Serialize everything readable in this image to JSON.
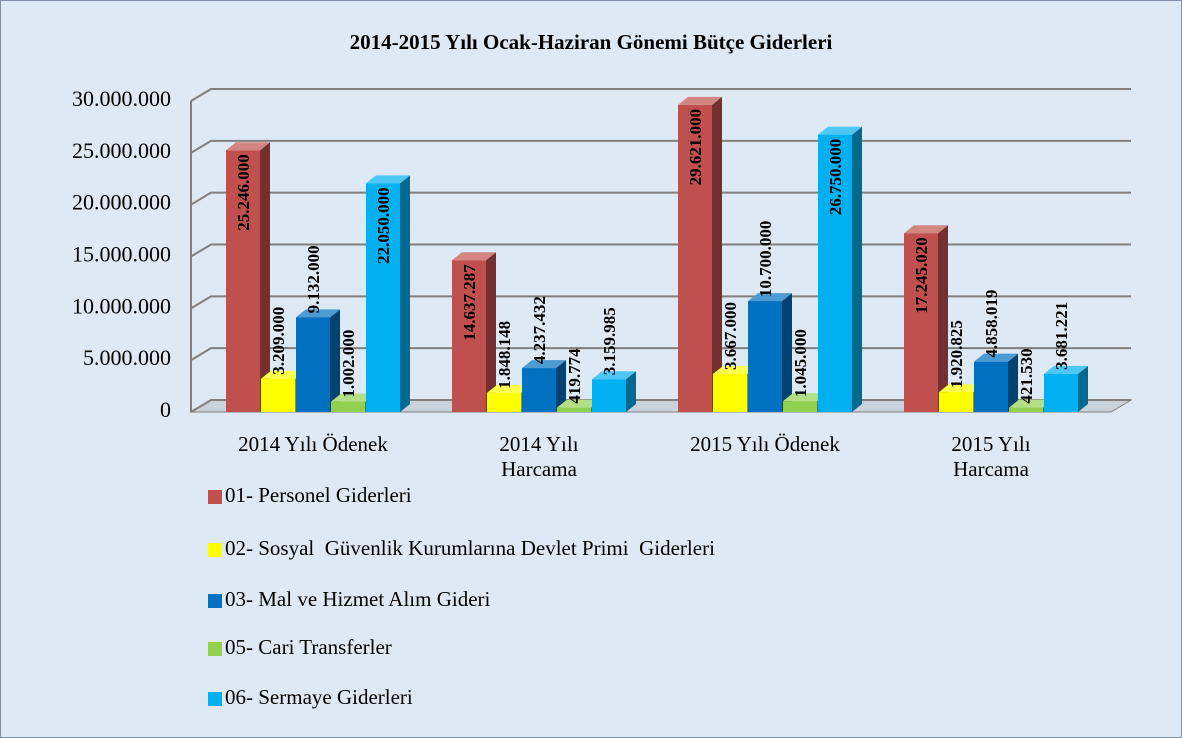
{
  "chart_data": {
    "type": "bar3d",
    "title": "2014-2015 Yılı Ocak-Haziran Gönemi Bütçe Giderleri",
    "categories": [
      "2014 Yılı Ödenek",
      "2014 Yılı\nHarcama",
      "2015 Yılı Ödenek",
      "2015 Yılı\nHarcama"
    ],
    "series": [
      {
        "name": "01- Personel Giderleri",
        "color": "#c0504d",
        "values": [
          25246000,
          14637287,
          29621000,
          17245020
        ],
        "value_labels": [
          "25.246.000",
          "14.637.287",
          "29.621.000",
          "17.245.020"
        ]
      },
      {
        "name": "02- Sosyal  Güvenlik Kurumlarına Devlet Primi  Giderleri",
        "color": "#ffff00",
        "values": [
          3209000,
          1848148,
          3667000,
          1920825
        ],
        "value_labels": [
          "3.209.000",
          "1.848.148",
          "3.667.000",
          "1.920.825"
        ]
      },
      {
        "name": "03- Mal ve Hizmet Alım Gideri",
        "color": "#0070c0",
        "values": [
          9132000,
          4237432,
          10700000,
          4858019
        ],
        "value_labels": [
          "9.132.000",
          "4.237.432",
          "10.700.000",
          "4.858.019"
        ]
      },
      {
        "name": "05- Cari Transferler",
        "color": "#92d050",
        "values": [
          1002000,
          419774,
          1045000,
          421530
        ],
        "value_labels": [
          "1.002.000",
          "419.774",
          "1.045.000",
          "421.530"
        ]
      },
      {
        "name": "06- Sermaye Giderleri",
        "color": "#00b0f0",
        "values": [
          22050000,
          3159985,
          26750000,
          3681221
        ],
        "value_labels": [
          "22.050.000",
          "3.159.985",
          "26.750.000",
          "3.681.221"
        ]
      }
    ],
    "ylim": [
      0,
      30000000
    ],
    "yticks": [
      0,
      {
        "value": 5000000,
        "label": "5.000.000"
      },
      {
        "value": 10000000,
        "label": "10.000.000"
      },
      {
        "value": 15000000,
        "label": "15.000.000"
      },
      {
        "value": 20000000,
        "label": "20.000.000"
      },
      {
        "value": 25000000,
        "label": "25.000.000"
      },
      {
        "value": 30000000,
        "label": "30.000.000"
      }
    ],
    "grid": true
  }
}
